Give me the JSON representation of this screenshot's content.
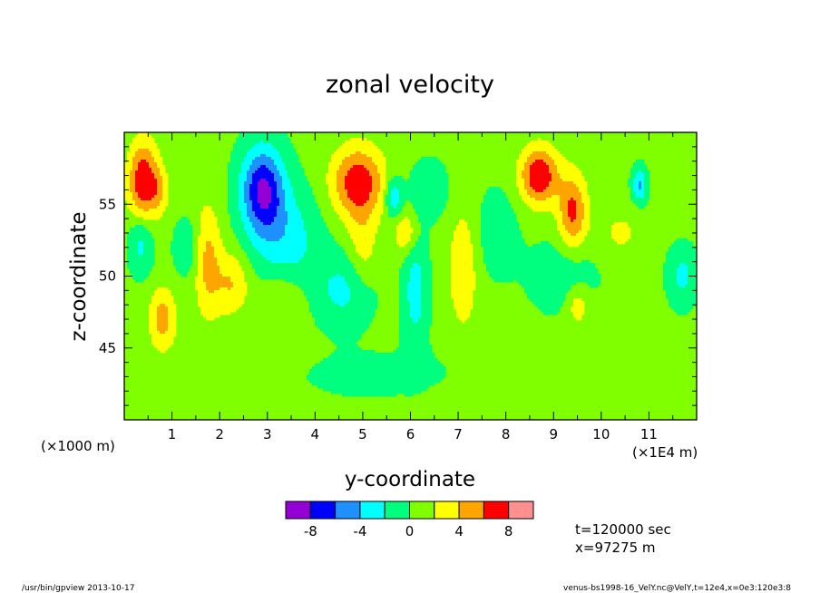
{
  "chart_data": {
    "type": "heatmap",
    "title": "zonal velocity",
    "xlabel": "y-coordinate",
    "ylabel": "z-coordinate",
    "x_unit_left": "(×1000 m)",
    "x_unit_right": "(×1E4 m)",
    "xlim": [
      0,
      12
    ],
    "ylim": [
      40,
      60
    ],
    "x_ticks": [
      1,
      2,
      3,
      4,
      5,
      6,
      7,
      8,
      9,
      10,
      11
    ],
    "y_ticks": [
      45,
      50,
      55
    ],
    "colorbar": {
      "levels": [
        -10,
        -8,
        -6,
        -4,
        -2,
        0,
        2,
        4,
        6,
        8,
        10
      ],
      "labels": [
        "-8",
        "-4",
        "0",
        "4",
        "8"
      ],
      "label_values": [
        -8,
        -4,
        0,
        4,
        8
      ],
      "colors": [
        "#9400d3",
        "#0000ff",
        "#1e90ff",
        "#00ffff",
        "#00ff7f",
        "#7fff00",
        "#ffff00",
        "#ffa500",
        "#ff0000",
        "#ff9090"
      ]
    },
    "background_value": 0.5,
    "features": [
      {
        "y": 0.4,
        "z": 56.5,
        "sy": 0.32,
        "sz": 2.8,
        "amp": 7.5
      },
      {
        "y": 0.35,
        "z": 52.5,
        "sy": 0.25,
        "sz": 2.2,
        "amp": -3.5
      },
      {
        "y": 0.75,
        "z": 56.0,
        "sy": 0.2,
        "sz": 1.5,
        "amp": 2.5
      },
      {
        "y": 0.8,
        "z": 47.0,
        "sy": 0.28,
        "sz": 2.2,
        "amp": 4.5
      },
      {
        "y": 1.3,
        "z": 52.0,
        "sy": 0.25,
        "sz": 1.8,
        "amp": -2.5
      },
      {
        "y": 1.75,
        "z": 51.0,
        "sy": 0.28,
        "sz": 4.0,
        "amp": 4.0
      },
      {
        "y": 2.25,
        "z": 49.5,
        "sy": 0.35,
        "sz": 2.2,
        "amp": 3.5
      },
      {
        "y": 2.9,
        "z": 56.0,
        "sy": 0.45,
        "sz": 3.0,
        "amp": -8.5
      },
      {
        "y": 3.4,
        "z": 52.5,
        "sy": 0.7,
        "sz": 3.5,
        "amp": -3.5
      },
      {
        "y": 3.3,
        "z": 48.5,
        "sy": 0.5,
        "sz": 2.0,
        "amp": 2.0
      },
      {
        "y": 4.6,
        "z": 49.0,
        "sy": 0.6,
        "sz": 2.5,
        "amp": -3.0
      },
      {
        "y": 4.9,
        "z": 56.5,
        "sy": 0.55,
        "sz": 2.5,
        "amp": 7.0
      },
      {
        "y": 5.0,
        "z": 52.0,
        "sy": 0.3,
        "sz": 3.0,
        "amp": 2.5
      },
      {
        "y": 5.65,
        "z": 55.5,
        "sy": 0.18,
        "sz": 1.4,
        "amp": -4.5
      },
      {
        "y": 5.9,
        "z": 53.0,
        "sy": 0.25,
        "sz": 1.5,
        "amp": 3.5
      },
      {
        "y": 6.1,
        "z": 49.0,
        "sy": 0.25,
        "sz": 4.0,
        "amp": -3.5
      },
      {
        "y": 6.4,
        "z": 56.0,
        "sy": 0.4,
        "sz": 2.0,
        "amp": -2.0
      },
      {
        "y": 7.1,
        "z": 50.5,
        "sy": 0.32,
        "sz": 4.5,
        "amp": 3.0
      },
      {
        "y": 7.8,
        "z": 53.0,
        "sy": 0.45,
        "sz": 3.0,
        "amp": -1.8
      },
      {
        "y": 8.7,
        "z": 57.0,
        "sy": 0.4,
        "sz": 2.0,
        "amp": 7.5
      },
      {
        "y": 9.4,
        "z": 54.5,
        "sy": 0.3,
        "sz": 2.6,
        "amp": 6.0
      },
      {
        "y": 9.5,
        "z": 48.0,
        "sy": 0.25,
        "sz": 1.5,
        "amp": 3.0
      },
      {
        "y": 9.2,
        "z": 50.0,
        "sy": 0.7,
        "sz": 2.5,
        "amp": -2.0
      },
      {
        "y": 10.8,
        "z": 56.3,
        "sy": 0.15,
        "sz": 1.2,
        "amp": -5.0
      },
      {
        "y": 11.7,
        "z": 50.0,
        "sy": 0.3,
        "sz": 2.0,
        "amp": -3.0
      },
      {
        "y": 10.4,
        "z": 53.0,
        "sy": 0.5,
        "sz": 2.0,
        "amp": 1.8
      },
      {
        "y": 5.5,
        "z": 43.0,
        "sy": 2.0,
        "sz": 2.0,
        "amp": -1.0
      },
      {
        "y": 9.0,
        "z": 41.5,
        "sy": 2.5,
        "sz": 1.5,
        "amp": 1.0
      }
    ]
  },
  "annotations": {
    "time": "t=120000 sec",
    "position": "x=97275 m"
  },
  "footer": {
    "left": "/usr/bin/gpview  2013-10-17",
    "right": "venus-bs1998-16_VelY.nc@VelY,t=12e4,x=0e3:120e3:8"
  }
}
